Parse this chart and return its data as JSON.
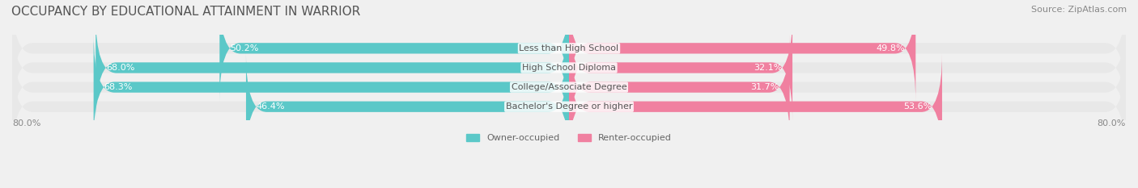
{
  "title": "OCCUPANCY BY EDUCATIONAL ATTAINMENT IN WARRIOR",
  "source": "Source: ZipAtlas.com",
  "categories": [
    "Less than High School",
    "High School Diploma",
    "College/Associate Degree",
    "Bachelor's Degree or higher"
  ],
  "owner_values": [
    50.2,
    68.0,
    68.3,
    46.4
  ],
  "renter_values": [
    49.8,
    32.1,
    31.7,
    53.6
  ],
  "owner_color": "#5BC8C8",
  "renter_color": "#F080A0",
  "bar_height": 0.55,
  "axis_limit": 80.0,
  "axis_label_left": "80.0%",
  "axis_label_right": "80.0%",
  "legend_owner": "Owner-occupied",
  "legend_renter": "Renter-occupied",
  "background_color": "#f0f0f0",
  "bar_background": "#e8e8e8",
  "title_fontsize": 11,
  "source_fontsize": 8,
  "label_fontsize": 8,
  "value_fontsize": 8
}
